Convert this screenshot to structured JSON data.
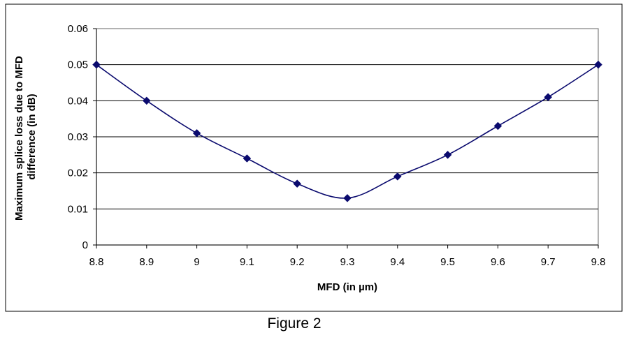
{
  "chart_data": {
    "type": "line",
    "title": "",
    "xlabel": "MFD (in µm)",
    "ylabel_lines": [
      "Maximum splice loss due to MFD",
      "difference (in dB)"
    ],
    "x": [
      8.8,
      8.9,
      9.0,
      9.1,
      9.2,
      9.3,
      9.4,
      9.5,
      9.6,
      9.7,
      9.8
    ],
    "x_tick_labels": [
      "8.8",
      "8.9",
      "9",
      "9.1",
      "9.2",
      "9.3",
      "9.4",
      "9.5",
      "9.6",
      "9.7",
      "9.8"
    ],
    "series": [
      {
        "values": [
          0.05,
          0.04,
          0.031,
          0.024,
          0.017,
          0.013,
          0.019,
          0.025,
          0.033,
          0.041,
          0.05
        ],
        "color": "#0a0a6e",
        "marker": "diamond",
        "smooth": true
      }
    ],
    "xlim": [
      8.8,
      9.8
    ],
    "ylim": [
      0,
      0.06
    ],
    "y_ticks": [
      0,
      0.01,
      0.02,
      0.03,
      0.04,
      0.05,
      0.06
    ],
    "y_tick_labels": [
      "0",
      "0.01",
      "0.02",
      "0.03",
      "0.04",
      "0.05",
      "0.06"
    ],
    "grid": "horizontal",
    "legend": "none"
  },
  "caption": "Figure 2"
}
